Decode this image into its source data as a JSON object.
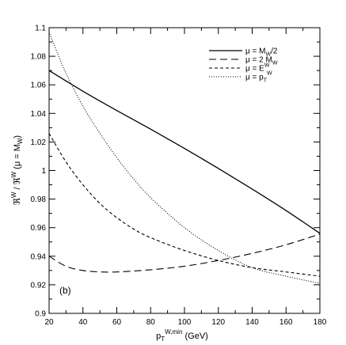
{
  "chart_data": {
    "type": "line",
    "panel_label": "(b)",
    "xlabel": "p_T^{W,min} (GeV)",
    "xlabel_parts": {
      "p": "p",
      "sub": "T",
      "sup": "W,min",
      "tail": " (GeV)"
    },
    "ylabel": "ℜW / ℜW (μ = MW)",
    "ylabel_parts": {
      "a": "ℜ",
      "a_sup": "W",
      "mid": " / ℜ",
      "b_sup": "W",
      "open": " (μ = M",
      "sub": "W",
      "close": ")"
    },
    "xlim": [
      20,
      180
    ],
    "ylim": [
      0.9,
      1.1
    ],
    "x_ticks": [
      20,
      40,
      60,
      80,
      100,
      120,
      140,
      160,
      180
    ],
    "x_tick_labels": [
      "20",
      "40",
      "60",
      "80",
      "100",
      "120",
      "140",
      "160",
      "180"
    ],
    "y_ticks": [
      0.9,
      0.92,
      0.94,
      0.96,
      0.98,
      1.0,
      1.02,
      1.04,
      1.06,
      1.08,
      1.1
    ],
    "y_tick_labels": [
      "0.9",
      "0.92",
      "0.94",
      "0.96",
      "0.98",
      "1",
      "1.02",
      "1.04",
      "1.06",
      "1.08",
      "1.1"
    ],
    "grid": false,
    "legend_position": "top-right",
    "series": [
      {
        "name": "μ = MW/2",
        "legend": {
          "pre": "μ = M",
          "sub": "W",
          "post": "/2"
        },
        "style": "solid",
        "x": [
          20,
          40,
          60,
          80,
          100,
          120,
          140,
          160,
          180
        ],
        "y": [
          1.07,
          1.0555,
          1.042,
          1.029,
          1.0155,
          1.0015,
          0.987,
          0.972,
          0.956
        ]
      },
      {
        "name": "μ = 2 MW",
        "legend": {
          "pre": "μ = 2 M",
          "sub": "W",
          "post": ""
        },
        "style": "dashed",
        "x": [
          20,
          30,
          40,
          50,
          60,
          80,
          100,
          120,
          140,
          160,
          180
        ],
        "y": [
          0.94,
          0.933,
          0.93,
          0.929,
          0.929,
          0.9305,
          0.933,
          0.937,
          0.942,
          0.948,
          0.9555
        ]
      },
      {
        "name": "μ = EW",
        "legend": {
          "pre": "μ = E",
          "sup": "W",
          "post": ""
        },
        "style": "short-dashed",
        "x": [
          20,
          30,
          40,
          50,
          60,
          70,
          80,
          100,
          120,
          140,
          160,
          180
        ],
        "y": [
          1.026,
          1.006,
          0.99,
          0.977,
          0.967,
          0.959,
          0.953,
          0.944,
          0.937,
          0.932,
          0.929,
          0.926
        ]
      },
      {
        "name": "μ = pTW",
        "legend": {
          "pre": "μ = p",
          "sub": "T",
          "sup": "W",
          "post": ""
        },
        "style": "dotted",
        "x": [
          20,
          25,
          30,
          40,
          50,
          60,
          70,
          80,
          100,
          120,
          140,
          160,
          180
        ],
        "y": [
          1.097,
          1.082,
          1.068,
          1.045,
          1.026,
          1.009,
          0.994,
          0.981,
          0.96,
          0.944,
          0.932,
          0.926,
          0.921
        ]
      }
    ]
  }
}
